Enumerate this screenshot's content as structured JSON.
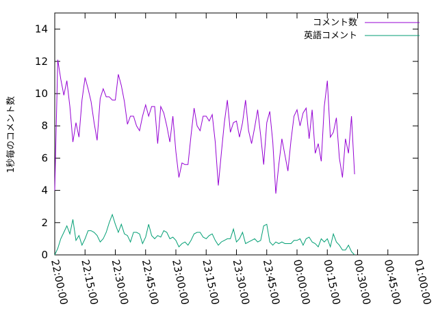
{
  "chart_data": {
    "type": "line",
    "ylabel": "1秒毎のコメント数",
    "xlabel": "",
    "ylim": [
      0,
      15
    ],
    "xlim": [
      "22:00:00",
      "01:00:00"
    ],
    "x_ticks": [
      "22:00:00",
      "22:15:00",
      "22:30:00",
      "22:45:00",
      "23:00:00",
      "23:15:00",
      "23:30:00",
      "23:45:00",
      "00:00:00",
      "00:15:00",
      "00:30:00",
      "00:45:00",
      "01:00:00"
    ],
    "y_ticks": [
      0,
      2,
      4,
      6,
      8,
      10,
      12,
      14
    ],
    "legend_position": "top-right",
    "grid": false,
    "x_step_minutes": 1.5,
    "x_start": "22:00:00",
    "series": [
      {
        "name": "コメント数",
        "color": "#9400d3",
        "values": [
          4.0,
          12.1,
          10.9,
          9.9,
          10.8,
          9.2,
          7.0,
          8.2,
          7.3,
          9.6,
          11.0,
          10.3,
          9.5,
          8.2,
          7.1,
          9.7,
          10.3,
          9.8,
          9.8,
          9.6,
          9.6,
          11.2,
          10.5,
          9.5,
          8.1,
          8.6,
          8.6,
          8.0,
          7.7,
          8.6,
          9.3,
          8.6,
          9.2,
          9.2,
          6.9,
          9.2,
          8.8,
          8.0,
          7.0,
          8.6,
          6.4,
          4.8,
          5.7,
          5.6,
          5.6,
          7.4,
          9.1,
          8.0,
          7.7,
          8.6,
          8.6,
          8.3,
          8.7,
          7.0,
          4.3,
          6.3,
          8.2,
          9.6,
          7.6,
          8.2,
          8.3,
          7.3,
          8.2,
          9.6,
          7.7,
          6.9,
          7.9,
          9.0,
          7.4,
          5.6,
          8.2,
          8.9,
          7.0,
          3.8,
          5.6,
          7.2,
          6.2,
          5.2,
          7.1,
          8.6,
          9.0,
          8.0,
          8.8,
          9.1,
          7.2,
          9.0,
          6.3,
          6.9,
          5.8,
          9.2,
          10.8,
          7.3,
          7.6,
          8.5,
          6.0,
          4.8,
          7.2,
          6.3,
          8.6,
          5.0
        ]
      },
      {
        "name": "英語コメント",
        "color": "#009e73",
        "values": [
          0.0,
          0.4,
          1.0,
          1.4,
          1.8,
          1.3,
          2.2,
          0.9,
          1.2,
          0.6,
          1.0,
          1.5,
          1.5,
          1.4,
          1.2,
          0.8,
          1.0,
          1.4,
          2.0,
          2.5,
          1.9,
          1.4,
          1.9,
          1.3,
          1.2,
          0.8,
          1.4,
          1.4,
          1.3,
          0.7,
          1.1,
          1.9,
          1.2,
          1.0,
          1.2,
          1.1,
          1.5,
          1.4,
          1.0,
          1.1,
          0.9,
          0.5,
          0.7,
          0.8,
          0.6,
          0.9,
          1.3,
          1.4,
          1.4,
          1.1,
          1.0,
          1.2,
          1.3,
          0.9,
          0.6,
          0.8,
          0.9,
          1.0,
          1.0,
          1.6,
          0.8,
          1.0,
          1.4,
          0.7,
          0.8,
          0.9,
          1.0,
          0.8,
          0.9,
          1.8,
          1.9,
          0.8,
          0.6,
          0.8,
          0.7,
          0.8,
          0.7,
          0.7,
          0.7,
          0.9,
          0.9,
          1.0,
          0.6,
          1.0,
          1.1,
          0.8,
          0.7,
          0.5,
          1.0,
          0.8,
          1.0,
          0.5,
          1.3,
          0.8,
          0.6,
          0.3,
          0.3,
          0.6,
          0.2,
          0.0
        ]
      }
    ]
  }
}
